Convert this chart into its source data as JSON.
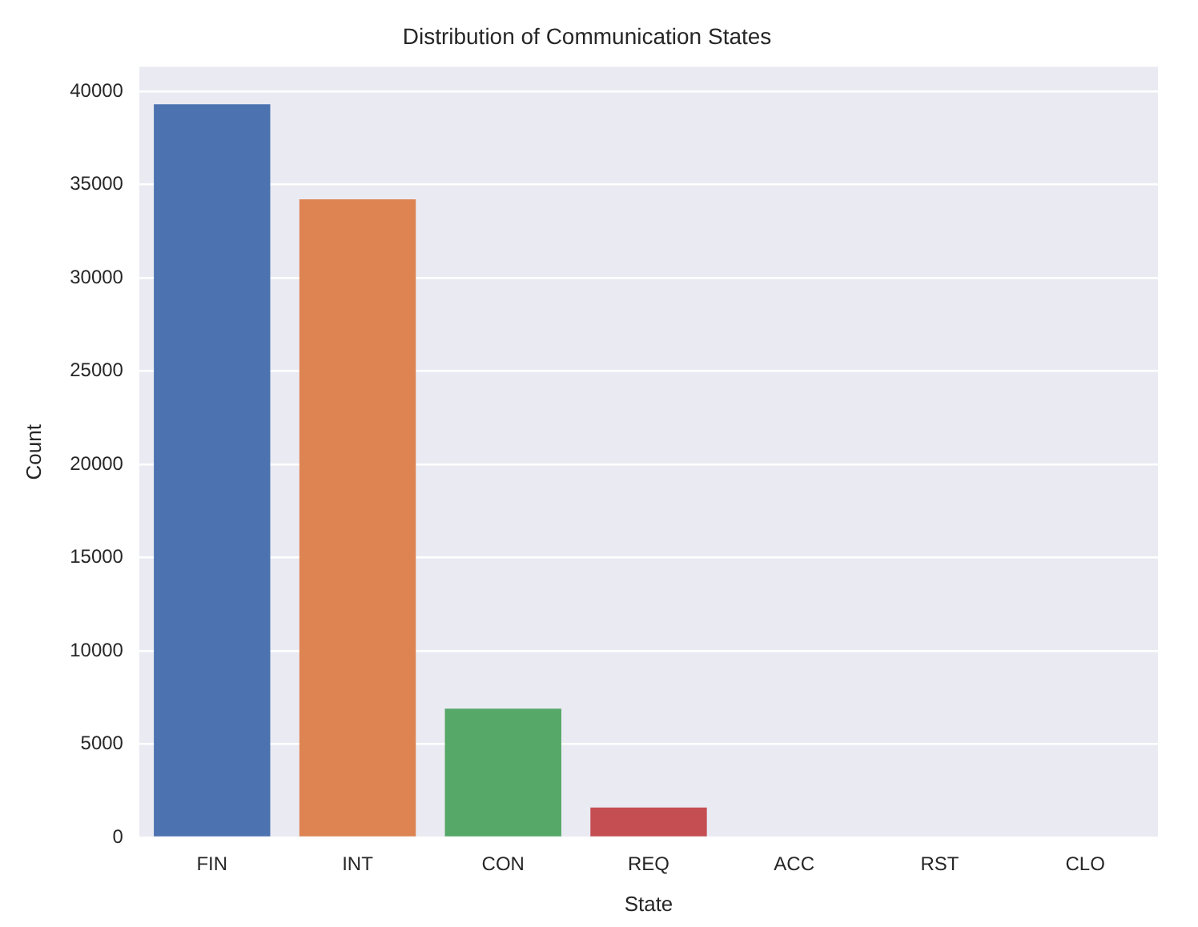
{
  "chart_data": {
    "type": "bar",
    "title": "Distribution of Communication States",
    "xlabel": "State",
    "ylabel": "Count",
    "categories": [
      "FIN",
      "INT",
      "CON",
      "REQ",
      "ACC",
      "RST",
      "CLO"
    ],
    "values": [
      39300,
      34200,
      6900,
      1600,
      0,
      0,
      0
    ],
    "colors": [
      "#4c72b0",
      "#dd8452",
      "#55a868",
      "#c44e52",
      "#8172b3",
      "#937860",
      "#da8bc3"
    ],
    "ylim": [
      0,
      41300
    ],
    "yticks": [
      0,
      5000,
      10000,
      15000,
      20000,
      25000,
      30000,
      35000,
      40000
    ],
    "grid": "y",
    "legend": false
  }
}
